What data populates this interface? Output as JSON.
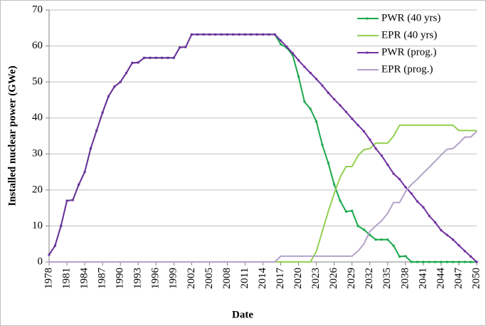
{
  "chart_data": {
    "type": "line",
    "x_label": "Date",
    "y_label": "Installed nuclear power (GWe)",
    "x": [
      1978,
      1979,
      1980,
      1981,
      1982,
      1983,
      1984,
      1985,
      1986,
      1987,
      1988,
      1989,
      1990,
      1991,
      1992,
      1993,
      1994,
      1995,
      1996,
      1997,
      1998,
      1999,
      2000,
      2001,
      2002,
      2003,
      2004,
      2005,
      2006,
      2007,
      2008,
      2009,
      2010,
      2011,
      2012,
      2013,
      2014,
      2015,
      2016,
      2017,
      2018,
      2019,
      2020,
      2021,
      2022,
      2023,
      2024,
      2025,
      2026,
      2027,
      2028,
      2029,
      2030,
      2031,
      2032,
      2033,
      2034,
      2035,
      2036,
      2037,
      2038,
      2039,
      2040,
      2041,
      2042,
      2043,
      2044,
      2045,
      2046,
      2047,
      2048,
      2049,
      2050
    ],
    "series": [
      {
        "name": "PWR (40 yrs)",
        "color": "#1aa84c",
        "marker": true,
        "values": [
          2,
          4.5,
          10,
          17,
          17.2,
          21.5,
          25,
          31.5,
          36.5,
          41.5,
          46,
          48.7,
          50,
          52.5,
          55.3,
          55.4,
          56.7,
          56.7,
          56.7,
          56.7,
          56.7,
          56.7,
          59.6,
          59.7,
          63.2,
          63.2,
          63.2,
          63.2,
          63.2,
          63.2,
          63.2,
          63.2,
          63.2,
          63.2,
          63.2,
          63.2,
          63.2,
          63.2,
          63.2,
          60.5,
          59.5,
          57.5,
          51.5,
          44.5,
          42.5,
          39,
          32.5,
          27.5,
          21.5,
          17,
          14,
          14.2,
          10,
          9,
          7.5,
          6.2,
          6.2,
          6.2,
          4.5,
          1.5,
          1.6,
          0,
          0,
          0,
          0,
          0,
          0,
          0,
          0,
          0,
          0,
          0,
          0
        ]
      },
      {
        "name": "EPR (40 yrs)",
        "color": "#92d050",
        "marker": false,
        "values": [
          0,
          0,
          0,
          0,
          0,
          0,
          0,
          0,
          0,
          0,
          0,
          0,
          0,
          0,
          0,
          0,
          0,
          0,
          0,
          0,
          0,
          0,
          0,
          0,
          0,
          0,
          0,
          0,
          0,
          0,
          0,
          0,
          0,
          0,
          0,
          0,
          0,
          0,
          0,
          0,
          0,
          0,
          0,
          0,
          0,
          3,
          8.5,
          14,
          19,
          23.5,
          26.5,
          26.5,
          29.5,
          31.2,
          31.5,
          33,
          33,
          33,
          35,
          38,
          38,
          38,
          38,
          38,
          38,
          38,
          38,
          38,
          38,
          36.5,
          36.5,
          36.5,
          36.5
        ]
      },
      {
        "name": "PWR (prog.)",
        "color": "#7030a0",
        "marker": true,
        "values": [
          2,
          4.5,
          10,
          17,
          17.2,
          21.5,
          25,
          31.5,
          36.5,
          41.5,
          46,
          48.7,
          50,
          52.5,
          55.3,
          55.4,
          56.7,
          56.7,
          56.7,
          56.7,
          56.7,
          56.7,
          59.6,
          59.7,
          63.2,
          63.2,
          63.2,
          63.2,
          63.2,
          63.2,
          63.2,
          63.2,
          63.2,
          63.2,
          63.2,
          63.2,
          63.2,
          63.2,
          63.2,
          61.5,
          59.8,
          58,
          56,
          54.2,
          52.5,
          50.8,
          49,
          47,
          45.2,
          43.5,
          41.7,
          39.8,
          38,
          36.3,
          34,
          31.5,
          29.5,
          27,
          24.5,
          23,
          20.8,
          19,
          16.8,
          15.2,
          12.8,
          11,
          8.8,
          7.5,
          6.2,
          4.6,
          3,
          1.5,
          0
        ]
      },
      {
        "name": "EPR (prog.)",
        "color": "#b3a2c7",
        "marker": false,
        "values": [
          0,
          0,
          0,
          0,
          0,
          0,
          0,
          0,
          0,
          0,
          0,
          0,
          0,
          0,
          0,
          0,
          0,
          0,
          0,
          0,
          0,
          0,
          0,
          0,
          0,
          0,
          0,
          0,
          0,
          0,
          0,
          0,
          0,
          0,
          0,
          0,
          0,
          0,
          0,
          1.6,
          1.6,
          1.6,
          1.6,
          1.6,
          1.6,
          1.6,
          1.6,
          1.6,
          1.6,
          1.6,
          1.6,
          1.6,
          3,
          5,
          8.5,
          10,
          11.5,
          13.5,
          16.5,
          16.5,
          19.5,
          21.5,
          23,
          24.7,
          26.3,
          28,
          29.7,
          31.3,
          31.5,
          33,
          34.7,
          34.7,
          36.3
        ]
      }
    ],
    "xlim": [
      1978,
      2050
    ],
    "xticks": [
      1978,
      1981,
      1984,
      1987,
      1990,
      1993,
      1996,
      1999,
      2002,
      2005,
      2008,
      2011,
      2014,
      2017,
      2020,
      2023,
      2026,
      2029,
      2032,
      2035,
      2038,
      2041,
      2044,
      2047,
      2050
    ],
    "ylim": [
      0,
      70
    ],
    "yticks": [
      0,
      10,
      20,
      30,
      40,
      50,
      60,
      70
    ],
    "grid": true,
    "legend": "top-right"
  }
}
